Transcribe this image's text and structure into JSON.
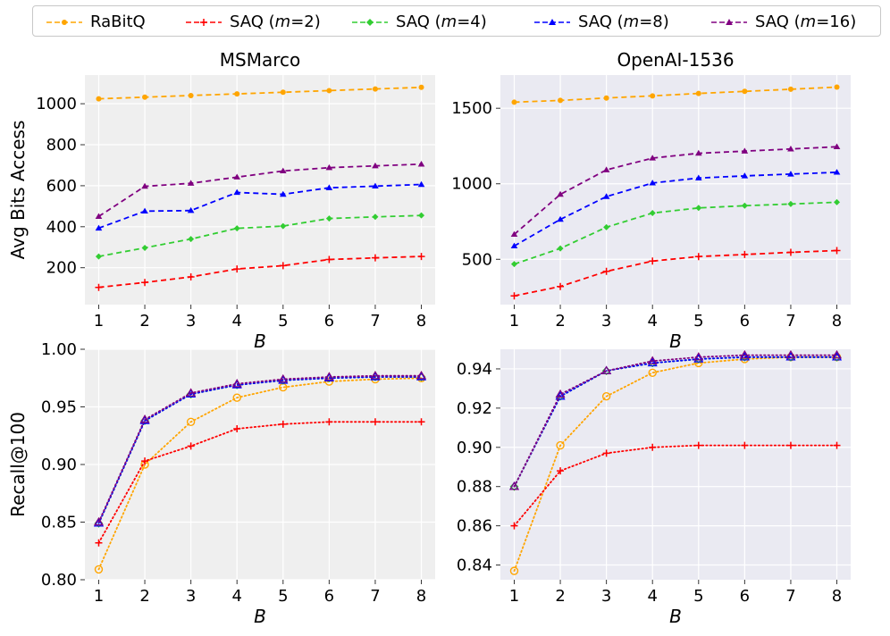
{
  "chart_data": [
    {
      "type": "line",
      "title": "MSMarco",
      "xlabel": "B",
      "ylabel": "Avg Bits Access",
      "x": [
        1,
        2,
        3,
        4,
        5,
        6,
        7,
        8
      ],
      "xlim": [
        0.7,
        8.3
      ],
      "ylim": [
        20,
        1140
      ],
      "yticks": [
        200,
        400,
        600,
        800,
        1000
      ],
      "background": "#efefef",
      "series": [
        {
          "name": "RaBitQ",
          "values": [
            1024,
            1032,
            1040,
            1048,
            1056,
            1064,
            1072,
            1080
          ]
        },
        {
          "name": "SAQ (m=2)",
          "values": [
            104,
            128,
            155,
            194,
            210,
            240,
            248,
            255
          ]
        },
        {
          "name": "SAQ (m=4)",
          "values": [
            255,
            297,
            340,
            392,
            403,
            440,
            448,
            455
          ]
        },
        {
          "name": "SAQ (m=8)",
          "values": [
            393,
            476,
            479,
            567,
            558,
            590,
            598,
            606
          ]
        },
        {
          "name": "SAQ (m=16)",
          "values": [
            450,
            597,
            612,
            642,
            672,
            688,
            697,
            705
          ]
        }
      ]
    },
    {
      "type": "line",
      "title": "OpenAI-1536",
      "xlabel": "B",
      "ylabel": "",
      "x": [
        1,
        2,
        3,
        4,
        5,
        6,
        7,
        8
      ],
      "xlim": [
        0.7,
        8.3
      ],
      "ylim": [
        200,
        1720
      ],
      "yticks": [
        500,
        1000,
        1500
      ],
      "background": "#eaeaf2",
      "series": [
        {
          "name": "RaBitQ",
          "values": [
            1540,
            1552,
            1568,
            1582,
            1598,
            1612,
            1626,
            1640
          ]
        },
        {
          "name": "SAQ (m=2)",
          "values": [
            258,
            320,
            420,
            488,
            518,
            532,
            546,
            558
          ]
        },
        {
          "name": "SAQ (m=4)",
          "values": [
            468,
            572,
            712,
            806,
            840,
            855,
            866,
            878
          ]
        },
        {
          "name": "SAQ (m=8)",
          "values": [
            588,
            764,
            915,
            1005,
            1038,
            1052,
            1064,
            1076
          ]
        },
        {
          "name": "SAQ (m=16)",
          "values": [
            665,
            930,
            1092,
            1170,
            1202,
            1216,
            1230,
            1245
          ]
        }
      ]
    },
    {
      "type": "line",
      "title": "",
      "xlabel": "B",
      "ylabel": "Recall@100",
      "x": [
        1,
        2,
        3,
        4,
        5,
        6,
        7,
        8
      ],
      "xlim": [
        0.7,
        8.3
      ],
      "ylim": [
        0.8,
        1.0
      ],
      "yticks": [
        0.8,
        0.85,
        0.9,
        0.95,
        1.0
      ],
      "ytick_labels": [
        "0.80",
        "0.85",
        "0.90",
        "0.95",
        "1.00"
      ],
      "background": "#efefef",
      "series": [
        {
          "name": "RaBitQ",
          "values": [
            0.809,
            0.9,
            0.937,
            0.958,
            0.967,
            0.972,
            0.974,
            0.975
          ]
        },
        {
          "name": "SAQ (m=2)",
          "values": [
            0.832,
            0.903,
            0.916,
            0.931,
            0.935,
            0.937,
            0.937,
            0.937
          ]
        },
        {
          "name": "SAQ (m=4)",
          "values": [
            0.849,
            0.938,
            0.961,
            0.969,
            0.973,
            0.975,
            0.976,
            0.976
          ]
        },
        {
          "name": "SAQ (m=8)",
          "values": [
            0.849,
            0.938,
            0.961,
            0.969,
            0.973,
            0.975,
            0.976,
            0.976
          ]
        },
        {
          "name": "SAQ (m=16)",
          "values": [
            0.85,
            0.939,
            0.962,
            0.97,
            0.974,
            0.976,
            0.977,
            0.977
          ]
        }
      ]
    },
    {
      "type": "line",
      "title": "",
      "xlabel": "B",
      "ylabel": "",
      "x": [
        1,
        2,
        3,
        4,
        5,
        6,
        7,
        8
      ],
      "xlim": [
        0.7,
        8.3
      ],
      "ylim": [
        0.8325,
        0.95
      ],
      "yticks": [
        0.84,
        0.86,
        0.88,
        0.9,
        0.92,
        0.94
      ],
      "ytick_labels": [
        "0.84",
        "0.86",
        "0.88",
        "0.90",
        "0.92",
        "0.94"
      ],
      "background": "#eaeaf2",
      "series": [
        {
          "name": "RaBitQ",
          "values": [
            0.837,
            0.901,
            0.926,
            0.938,
            0.943,
            0.945,
            0.946,
            0.946
          ]
        },
        {
          "name": "SAQ (m=2)",
          "values": [
            0.86,
            0.888,
            0.897,
            0.9,
            0.901,
            0.901,
            0.901,
            0.901
          ]
        },
        {
          "name": "SAQ (m=4)",
          "values": [
            0.88,
            0.926,
            0.939,
            0.943,
            0.945,
            0.946,
            0.946,
            0.946
          ]
        },
        {
          "name": "SAQ (m=8)",
          "values": [
            0.88,
            0.926,
            0.939,
            0.943,
            0.945,
            0.946,
            0.946,
            0.946
          ]
        },
        {
          "name": "SAQ (m=16)",
          "values": [
            0.88,
            0.927,
            0.939,
            0.944,
            0.946,
            0.947,
            0.947,
            0.947
          ]
        }
      ]
    }
  ],
  "legend": [
    {
      "label": "RaBitQ",
      "color": "#ffa500",
      "marker": "circle"
    },
    {
      "label": "SAQ (m=2)",
      "color": "#ff0000",
      "marker": "plus"
    },
    {
      "label": "SAQ (m=4)",
      "color": "#32cd32",
      "marker": "diamond"
    },
    {
      "label": "SAQ (m=8)",
      "color": "#0000ff",
      "marker": "triangle"
    },
    {
      "label": "SAQ (m=16)",
      "color": "#800080",
      "marker": "star"
    }
  ]
}
